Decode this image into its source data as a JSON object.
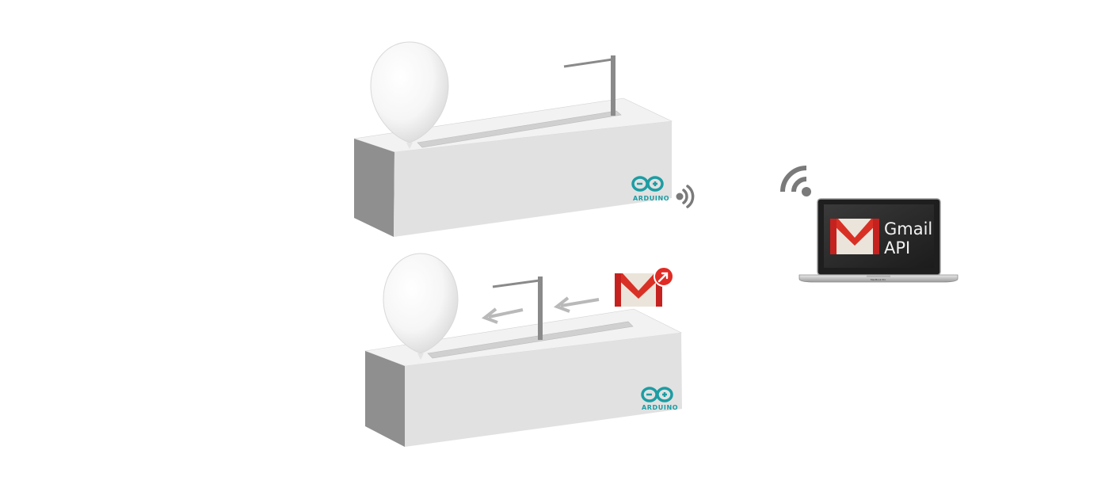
{
  "scene": {
    "device_top": {
      "board_logo": "ARDUINO",
      "state": "balloon intact, needle raised at far end",
      "icons": [
        "arduino-logo-icon",
        "wireless-signal-icon"
      ]
    },
    "device_bottom": {
      "board_logo": "ARDUINO",
      "state": "needle sliding toward balloon",
      "icons": [
        "arduino-logo-icon",
        "gmail-new-mail-icon",
        "arrow-left-icon"
      ]
    },
    "laptop": {
      "screen_line1": "Gmail",
      "screen_line2": "API",
      "brand": "MacBook Pro",
      "icons": [
        "wifi-icon",
        "gmail-logo-icon"
      ]
    },
    "colors": {
      "box_face": "#e1e1e1",
      "box_top": "#f2f2f2",
      "box_side": "#8f8f8f",
      "arduino_teal": "#1c9da3",
      "gmail_red": "#d93025",
      "signal_gray": "#7a7a7a",
      "arrow_gray": "#b9b9b9"
    }
  }
}
